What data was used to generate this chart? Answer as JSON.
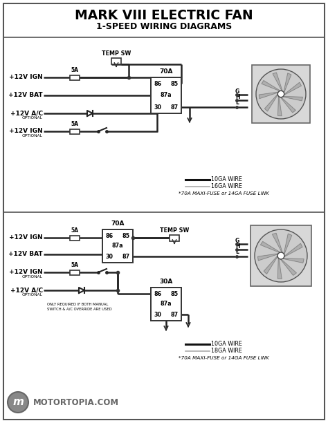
{
  "title1": "MARK VIII ELECTRIC FAN",
  "title2": "1-SPEED WIRING DIAGRAMS",
  "diagram1": {
    "legend1": "10GA WIRE",
    "legend2": "16GA WIRE",
    "footnote": "*70A MAXI-FUSE or 14GA FUSE LINK"
  },
  "diagram2": {
    "legend1": "10GA WIRE",
    "legend2": "18GA WIRE",
    "footnote": "*70A MAXI-FUSE or 14GA FUSE LINK"
  },
  "footer_text": "MOTORTOPIA.COM"
}
